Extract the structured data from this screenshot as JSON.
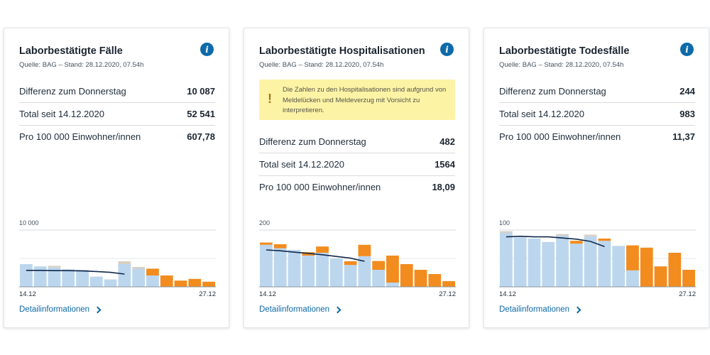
{
  "cards": [
    {
      "title": "Laborbestätigte Fälle",
      "source": "Quelle: BAG – Stand: 28.12.2020, 07.54h",
      "info_icon": "i",
      "stats": [
        {
          "label": "Differenz zum Donnerstag",
          "value": "10 087"
        },
        {
          "label": "Total seit 14.12.2020",
          "value": "52 541"
        },
        {
          "label": "Pro 100 000 Einwohner/innen",
          "value": "607,78"
        }
      ],
      "details_label": "Detailinformationen"
    },
    {
      "title": "Laborbestätigte Hospitalisationen",
      "source": "Quelle: BAG – Stand: 28.12.2020, 07.54h",
      "info_icon": "i",
      "warning": {
        "icon": "!",
        "text": "Die Zahlen zu den Hospitalisationen sind aufgrund von Meldelücken und Meldeverzug mit Vorsicht zu interpretieren."
      },
      "stats": [
        {
          "label": "Differenz zum Donnerstag",
          "value": "482"
        },
        {
          "label": "Total seit 14.12.2020",
          "value": "1564"
        },
        {
          "label": "Pro 100 000 Einwohner/innen",
          "value": "18,09"
        }
      ],
      "details_label": "Detailinformationen"
    },
    {
      "title": "Laborbestätigte Todesfälle",
      "source": "Quelle: BAG – Stand: 28.12.2020, 07.54h",
      "info_icon": "i",
      "stats": [
        {
          "label": "Differenz zum Donnerstag",
          "value": "244"
        },
        {
          "label": "Total seit 14.12.2020",
          "value": "983"
        },
        {
          "label": "Pro 100 000 Einwohner/innen",
          "value": "11,37"
        }
      ],
      "details_label": "Detailinformationen"
    }
  ],
  "colors": {
    "bar_blue": "#bcd6ee",
    "bar_orange": "#f28c1e",
    "bar_gray": "#d8d0c4",
    "avg_line": "#12284a",
    "accent": "#0e6aa8",
    "warning_bg": "#fdf3a5"
  },
  "chart_data": [
    {
      "type": "bar",
      "ymax": 10000,
      "ytick_label": "10 000",
      "x_start_label": "14.12",
      "x_end_label": "27.12",
      "blue": [
        4000,
        3600,
        3400,
        3100,
        3000,
        1800,
        1300,
        4000,
        3200,
        2000,
        0,
        0,
        0,
        0
      ],
      "gray": [
        0,
        0,
        300,
        0,
        0,
        0,
        0,
        500,
        300,
        0,
        0,
        0,
        0,
        0
      ],
      "orange": [
        0,
        0,
        0,
        0,
        0,
        0,
        0,
        0,
        0,
        1200,
        2000,
        1100,
        1400,
        900
      ],
      "avg": [
        2900,
        2900,
        2850,
        2850,
        2800,
        2700,
        2550,
        2250
      ]
    },
    {
      "type": "bar",
      "ymax": 200,
      "ytick_label": "200",
      "x_start_label": "14.12",
      "x_end_label": "27.12",
      "blue": [
        148,
        136,
        130,
        110,
        120,
        100,
        77,
        108,
        60,
        15,
        0,
        0,
        0,
        0
      ],
      "gray": [
        0,
        0,
        0,
        0,
        0,
        0,
        0,
        0,
        0,
        0,
        0,
        0,
        0,
        0
      ],
      "orange": [
        8,
        14,
        0,
        12,
        22,
        0,
        13,
        40,
        31,
        95,
        80,
        60,
        45,
        20
      ],
      "avg": [
        130,
        127,
        122,
        118,
        113,
        107,
        101,
        90
      ]
    },
    {
      "type": "bar",
      "ymax": 100,
      "ytick_label": "100",
      "x_start_label": "14.12",
      "x_end_label": "27.12",
      "blue": [
        95,
        87,
        85,
        79,
        90,
        76,
        89,
        81,
        72,
        29,
        0,
        0,
        0,
        0
      ],
      "gray": [
        3,
        0,
        0,
        0,
        3,
        0,
        3,
        0,
        0,
        0,
        0,
        0,
        0,
        0
      ],
      "orange": [
        0,
        0,
        0,
        0,
        0,
        5,
        0,
        4,
        0,
        44,
        69,
        36,
        60,
        30
      ],
      "avg": [
        88,
        89,
        88,
        88,
        86,
        84,
        80,
        71
      ]
    }
  ]
}
